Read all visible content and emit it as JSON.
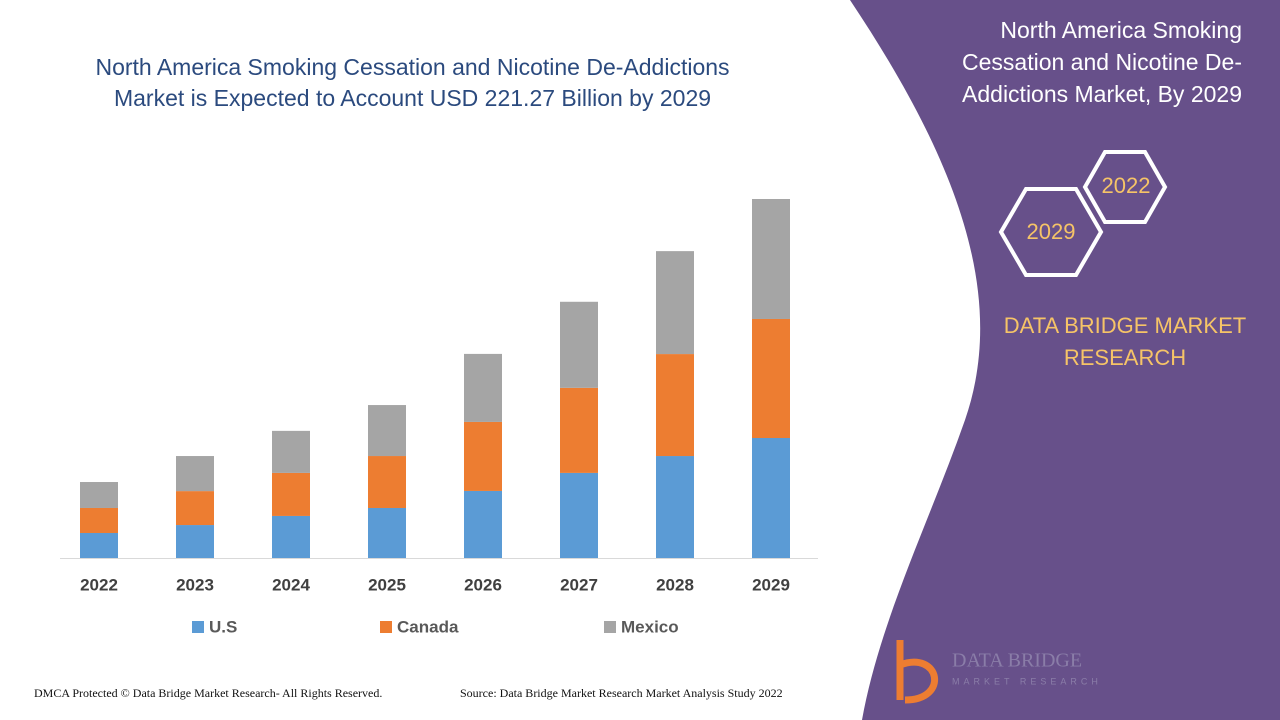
{
  "chart_data": {
    "type": "bar",
    "stacked": true,
    "title": "North America Smoking Cessation and Nicotine De-Addictions Market is Expected to Account USD 221.27 Billion by 2029",
    "categories": [
      "2022",
      "2023",
      "2024",
      "2025",
      "2026",
      "2027",
      "2028",
      "2029"
    ],
    "series": [
      {
        "name": "U.S",
        "color": "#5b9bd5",
        "values": [
          15.4,
          20.3,
          25.9,
          30.8,
          41.3,
          52.4,
          62.8,
          73.9
        ]
      },
      {
        "name": "Canada",
        "color": "#ed7d31",
        "values": [
          15.4,
          20.9,
          26.5,
          32.0,
          42.5,
          52.4,
          62.8,
          73.3
        ]
      },
      {
        "name": "Mexico",
        "color": "#a5a5a5",
        "values": [
          16.0,
          21.6,
          25.9,
          31.4,
          41.9,
          53.0,
          63.4,
          73.9
        ]
      }
    ]
  },
  "panel": {
    "title": "North America Smoking Cessation and Nicotine De-Addictions Market, By 2029",
    "hexagons": [
      "2022",
      "2029"
    ],
    "brand": "DATA BRIDGE MARKET RESEARCH"
  },
  "footer": {
    "copyright": "DMCA Protected © Data Bridge Market Research- All Rights Reserved.",
    "source": "Source: Data Bridge Market Research Market Analysis Study 2022"
  },
  "logo": {
    "name": "DATA BRIDGE",
    "tagline": "MARKET RESEARCH"
  }
}
